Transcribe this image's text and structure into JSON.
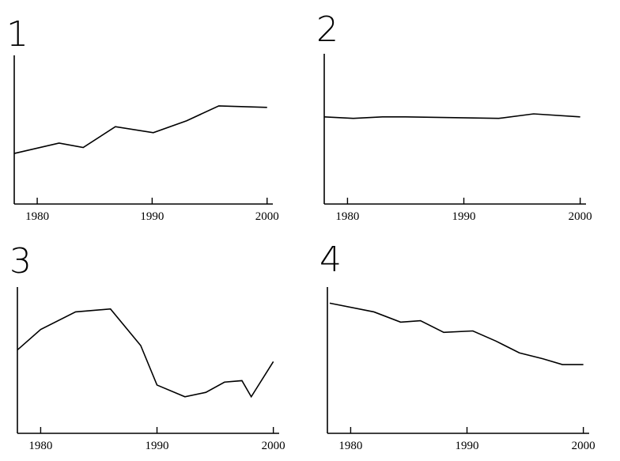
{
  "chart_data": [
    {
      "type": "line",
      "title": "1",
      "xlim": [
        1978,
        2000.5
      ],
      "xticks": [
        1980,
        1990,
        2000
      ],
      "ylim": [
        0,
        100
      ],
      "series": [
        {
          "color": "#000000",
          "x": [
            1978,
            1981.9,
            1984,
            1986.8,
            1990.1,
            1993,
            1995.8,
            2000
          ],
          "values": [
            34,
            41,
            38,
            52,
            48,
            56,
            66,
            65
          ]
        }
      ]
    },
    {
      "type": "line",
      "title": "2",
      "xlim": [
        1978,
        2000.5
      ],
      "xticks": [
        1980,
        1990,
        2000
      ],
      "ylim": [
        0,
        100
      ],
      "series": [
        {
          "color": "#000000",
          "x": [
            1978,
            1980.5,
            1983,
            1985,
            1993,
            1996,
            2000
          ],
          "values": [
            58,
            57,
            58,
            58,
            57,
            60,
            58
          ]
        }
      ]
    },
    {
      "type": "line",
      "title": "3",
      "xlim": [
        1978,
        2000.5
      ],
      "xticks": [
        1980,
        1990,
        2000
      ],
      "ylim": [
        0,
        100
      ],
      "series": [
        {
          "color": "#000000",
          "x": [
            1978,
            1980,
            1983,
            1986,
            1988.6,
            1990,
            1992.4,
            1994.2,
            1995.8,
            1997.3,
            1998.1,
            2000
          ],
          "values": [
            57,
            71,
            83,
            85,
            60,
            33,
            25,
            28,
            35,
            36,
            25,
            49
          ]
        }
      ]
    },
    {
      "type": "line",
      "title": "4",
      "xlim": [
        1978,
        2000.5
      ],
      "xticks": [
        1980,
        1990,
        2000
      ],
      "ylim": [
        0,
        100
      ],
      "series": [
        {
          "color": "#000000",
          "x": [
            1978.2,
            1982,
            1984.3,
            1986,
            1988,
            1990.5,
            1992.5,
            1994.5,
            1996.5,
            1998.2,
            2000
          ],
          "values": [
            89,
            83,
            76,
            77,
            69,
            70,
            63,
            55,
            51,
            47,
            47
          ]
        }
      ]
    }
  ]
}
